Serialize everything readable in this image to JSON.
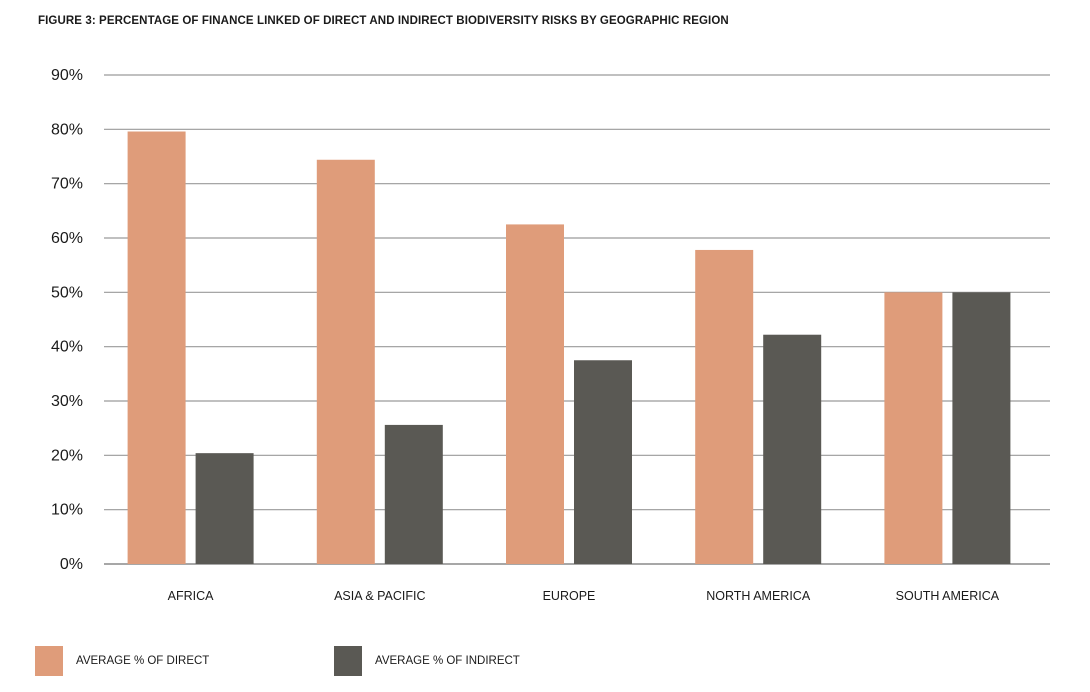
{
  "chart_data": {
    "type": "bar",
    "title": "FIGURE 3: PERCENTAGE OF FINANCE LINKED OF DIRECT AND INDIRECT BIODIVERSITY RISKS BY GEOGRAPHIC REGION",
    "xlabel": "",
    "ylabel": "",
    "ylim": [
      0,
      90
    ],
    "yticks": [
      "0%",
      "10%",
      "20%",
      "30%",
      "40%",
      "50%",
      "60%",
      "70%",
      "80%",
      "90%"
    ],
    "grid": true,
    "legend_position": "bottom-left",
    "categories": [
      "AFRICA",
      "ASIA & PACIFIC",
      "EUROPE",
      "NORTH AMERICA",
      "SOUTH AMERICA"
    ],
    "series": [
      {
        "name": "AVERAGE % OF DIRECT",
        "color": "#df9c7a",
        "values": [
          79.6,
          74.4,
          62.5,
          57.8,
          50.0
        ]
      },
      {
        "name": "AVERAGE % OF INDIRECT",
        "color": "#5a5954",
        "values": [
          20.4,
          25.6,
          37.5,
          42.2,
          50.0
        ]
      }
    ]
  }
}
